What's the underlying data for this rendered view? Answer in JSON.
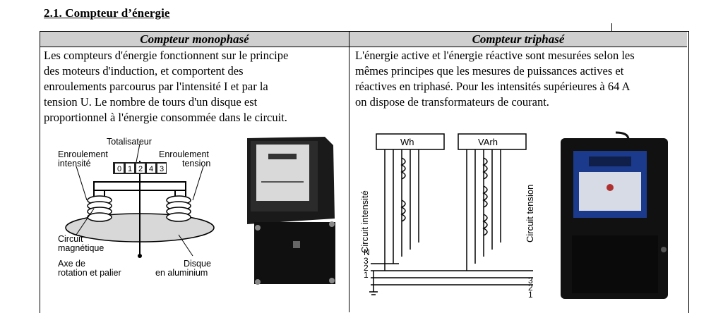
{
  "section": {
    "title": "2.1. Compteur d’énergie"
  },
  "table": {
    "left": {
      "header": "Compteur monophasé",
      "text": "Les compteurs d'énergie fonctionnent sur le principe\ndes moteurs d'induction, et comportent des\nenroulements parcourus par l'intensité I et par la\ntension U. Le nombre de tours d'un disque est\nproportionnel à l'énergie consommée dans le circuit."
    },
    "right": {
      "header": "Compteur triphasé",
      "text": "L'énergie active et l'énergie réactive sont mesurées selon les\nmêmes principes que les mesures de puissances actives et\nréactives en triphasé. Pour les intensités supérieures à 64 A\non dispose de transformateurs de courant."
    }
  },
  "mono_diagram": {
    "totalisateur": "Totalisateur",
    "enroulement_intensite_1": "Enroulement",
    "enroulement_intensite_2": "intensité",
    "enroulement_tension_1": "Enroulement",
    "enroulement_tension_2": "tension",
    "counter_digits": [
      "0",
      "1",
      "2",
      "4",
      "3"
    ],
    "circuit_1": "Circuit",
    "circuit_2": "magnétique",
    "axe_1": "Axe de",
    "axe_2": "rotation et palier",
    "disque_1": "Disque",
    "disque_2": "en aluminium"
  },
  "tri_diagram": {
    "wh": "Wh",
    "varh": "VArh",
    "circuit_intensite": "Circuit intensité",
    "circuit_tension": "Circuit tension",
    "left_numbers": [
      "3",
      "2",
      "1",
      "N"
    ],
    "right_numbers": [
      "3",
      "2",
      "1"
    ]
  }
}
